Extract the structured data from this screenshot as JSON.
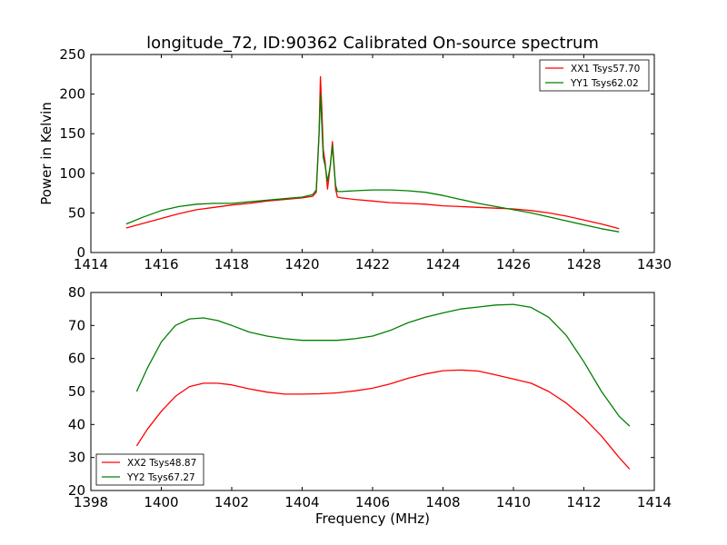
{
  "figure": {
    "title": "longitude_72, ID:90362 Calibrated On-source spectrum"
  },
  "chart_data": [
    {
      "type": "line",
      "title": "longitude_72, ID:90362 Calibrated On-source spectrum",
      "xlabel": "",
      "ylabel": "Power in Kelvin",
      "xlim": [
        1414,
        1430
      ],
      "ylim": [
        0,
        250
      ],
      "xticks": [
        1414,
        1416,
        1418,
        1420,
        1422,
        1424,
        1426,
        1428,
        1430
      ],
      "yticks": [
        0,
        50,
        100,
        150,
        200,
        250
      ],
      "grid": false,
      "legend_position": "top-right",
      "series": [
        {
          "name": "XX1 Tsys57.70",
          "color": "#ff0000",
          "x": [
            1415.0,
            1415.5,
            1416.0,
            1416.5,
            1417.0,
            1417.5,
            1418.0,
            1418.5,
            1419.0,
            1419.5,
            1420.0,
            1420.3,
            1420.4,
            1420.48,
            1420.52,
            1420.56,
            1420.6,
            1420.65,
            1420.72,
            1420.8,
            1420.86,
            1420.9,
            1420.95,
            1421.0,
            1421.1,
            1421.5,
            1422.0,
            1422.5,
            1423.0,
            1423.5,
            1424.0,
            1424.5,
            1425.0,
            1425.5,
            1426.0,
            1426.5,
            1427.0,
            1427.5,
            1428.0,
            1428.5,
            1429.0
          ],
          "y": [
            31,
            37,
            43,
            49,
            54,
            57,
            60,
            62,
            65,
            67,
            69,
            71,
            76,
            150,
            222,
            180,
            130,
            115,
            80,
            110,
            140,
            115,
            80,
            70,
            69,
            67,
            65,
            63,
            62,
            61,
            59,
            58,
            57,
            56,
            55,
            53,
            50,
            46,
            41,
            36,
            30
          ]
        },
        {
          "name": "YY1 Tsys62.02",
          "color": "#008000",
          "x": [
            1415.0,
            1415.5,
            1416.0,
            1416.5,
            1417.0,
            1417.5,
            1418.0,
            1418.5,
            1419.0,
            1419.5,
            1420.0,
            1420.3,
            1420.4,
            1420.48,
            1420.52,
            1420.56,
            1420.6,
            1420.65,
            1420.72,
            1420.8,
            1420.86,
            1420.9,
            1420.95,
            1421.0,
            1421.1,
            1421.5,
            1422.0,
            1422.5,
            1423.0,
            1423.5,
            1424.0,
            1424.5,
            1425.0,
            1425.5,
            1426.0,
            1426.5,
            1427.0,
            1427.5,
            1428.0,
            1428.5,
            1429.0
          ],
          "y": [
            36,
            45,
            53,
            58,
            61,
            62,
            62,
            64,
            66,
            68,
            70,
            73,
            79,
            150,
            200,
            160,
            120,
            110,
            90,
            110,
            135,
            110,
            85,
            77,
            77,
            78,
            79,
            79,
            78,
            76,
            72,
            67,
            62,
            58,
            54,
            50,
            45,
            40,
            35,
            30,
            26
          ]
        }
      ]
    },
    {
      "type": "line",
      "title": "",
      "xlabel": "Frequency (MHz)",
      "ylabel": "",
      "xlim": [
        1398,
        1414
      ],
      "ylim": [
        20,
        80
      ],
      "xticks": [
        1398,
        1400,
        1402,
        1404,
        1406,
        1408,
        1410,
        1412,
        1414
      ],
      "yticks": [
        20,
        30,
        40,
        50,
        60,
        70,
        80
      ],
      "grid": false,
      "legend_position": "bottom-left",
      "series": [
        {
          "name": "XX2 Tsys48.87",
          "color": "#ff0000",
          "x": [
            1399.3,
            1399.6,
            1400.0,
            1400.4,
            1400.8,
            1401.2,
            1401.6,
            1402.0,
            1402.5,
            1403.0,
            1403.5,
            1404.0,
            1404.5,
            1405.0,
            1405.5,
            1406.0,
            1406.5,
            1407.0,
            1407.5,
            1408.0,
            1408.5,
            1409.0,
            1409.5,
            1410.0,
            1410.5,
            1411.0,
            1411.5,
            1412.0,
            1412.5,
            1413.0,
            1413.3
          ],
          "y": [
            33.5,
            38.5,
            44,
            48.5,
            51.5,
            52.5,
            52.5,
            52,
            50.8,
            49.8,
            49.2,
            49.2,
            49.3,
            49.6,
            50.2,
            51,
            52.3,
            54,
            55.3,
            56.3,
            56.5,
            56.2,
            55,
            53.8,
            52.5,
            50,
            46.5,
            42,
            36.5,
            30,
            26.5
          ]
        },
        {
          "name": "YY2 Tsys67.27",
          "color": "#008000",
          "x": [
            1399.3,
            1399.6,
            1400.0,
            1400.4,
            1400.8,
            1401.2,
            1401.6,
            1402.0,
            1402.5,
            1403.0,
            1403.5,
            1404.0,
            1404.5,
            1405.0,
            1405.5,
            1406.0,
            1406.5,
            1407.0,
            1407.5,
            1408.0,
            1408.5,
            1409.0,
            1409.5,
            1410.0,
            1410.5,
            1411.0,
            1411.5,
            1412.0,
            1412.5,
            1413.0,
            1413.3
          ],
          "y": [
            50,
            57,
            65,
            70,
            72,
            72.3,
            71.5,
            70,
            68,
            66.8,
            66,
            65.5,
            65.5,
            65.5,
            66,
            66.8,
            68.5,
            70.8,
            72.5,
            73.8,
            75,
            75.6,
            76.2,
            76.4,
            75.5,
            72.5,
            67,
            59,
            50,
            42.5,
            39.5
          ]
        }
      ]
    }
  ]
}
